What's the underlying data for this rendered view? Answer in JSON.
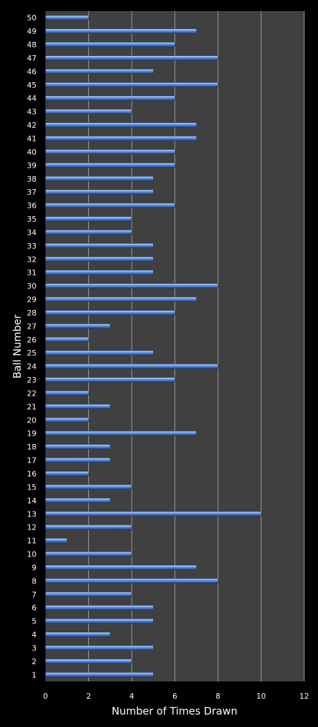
{
  "chart_data": {
    "type": "bar",
    "orientation": "horizontal",
    "title": "",
    "xlabel": "Number of Times Drawn",
    "ylabel": "Ball Number",
    "xlim": [
      0,
      12
    ],
    "xticks": [
      "0",
      "2",
      "4",
      "6",
      "8",
      "10",
      "12"
    ],
    "grid": true,
    "categories": [
      "1",
      "2",
      "3",
      "4",
      "5",
      "6",
      "7",
      "8",
      "9",
      "10",
      "11",
      "12",
      "13",
      "14",
      "15",
      "16",
      "17",
      "18",
      "19",
      "20",
      "21",
      "22",
      "23",
      "24",
      "25",
      "26",
      "27",
      "28",
      "29",
      "30",
      "31",
      "32",
      "33",
      "34",
      "35",
      "36",
      "37",
      "38",
      "39",
      "40",
      "41",
      "42",
      "43",
      "44",
      "45",
      "46",
      "47",
      "48",
      "49",
      "50"
    ],
    "values": [
      5,
      4,
      5,
      3,
      5,
      5,
      4,
      8,
      7,
      4,
      1,
      4,
      10,
      3,
      4,
      2,
      3,
      3,
      7,
      2,
      3,
      2,
      6,
      8,
      5,
      2,
      3,
      6,
      7,
      8,
      5,
      5,
      5,
      4,
      4,
      6,
      5,
      5,
      6,
      6,
      7,
      7,
      4,
      6,
      8,
      5,
      8,
      6,
      7,
      2
    ],
    "colors": {
      "background": "#000000",
      "plot_area": "#404040",
      "bar": "#4a7fd0",
      "gridline": "#9a9a9a",
      "text": "#ffffff"
    }
  }
}
